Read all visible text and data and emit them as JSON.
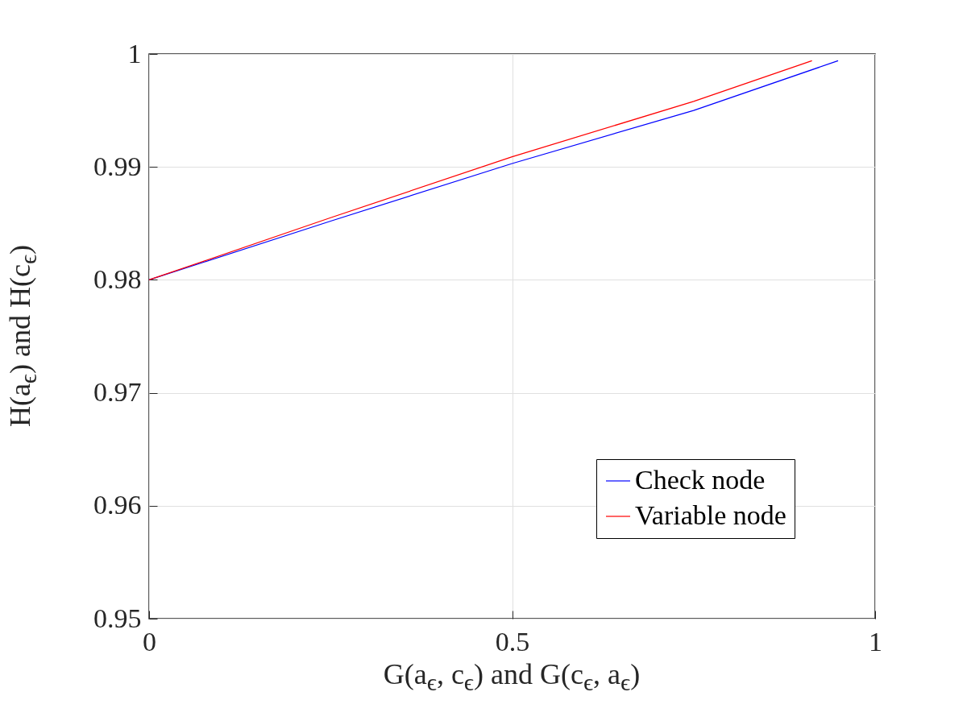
{
  "chart_data": {
    "type": "line",
    "xlabel": "G(a$_{ϵ}$, c$_{ϵ}$) and G(c$_{ϵ}$, a$_{ϵ}$)",
    "ylabel": "H(a$_{ϵ}$) and H(c$_{ϵ}$)",
    "xlim": [
      0,
      1
    ],
    "xticks": [
      0,
      0.5,
      1
    ],
    "ylim": [
      0.95,
      1
    ],
    "yticks": [
      0.95,
      0.96,
      0.97,
      0.98,
      0.99,
      1
    ],
    "grid": true,
    "legend": "bottom right",
    "line_style": "solid",
    "marker": "none",
    "series": [
      {
        "name": "Check node",
        "color": "#0000ff",
        "x": [
          0,
          0.25,
          0.5,
          0.75,
          0.949
        ],
        "values": [
          0.98,
          0.9852,
          0.9903,
          0.995,
          0.9994
        ]
      },
      {
        "name": "Variable node",
        "color": "#ff0000",
        "x": [
          0,
          0.25,
          0.5,
          0.75,
          0.913
        ],
        "values": [
          0.98,
          0.9855,
          0.9909,
          0.9958,
          0.9994
        ]
      }
    ]
  }
}
